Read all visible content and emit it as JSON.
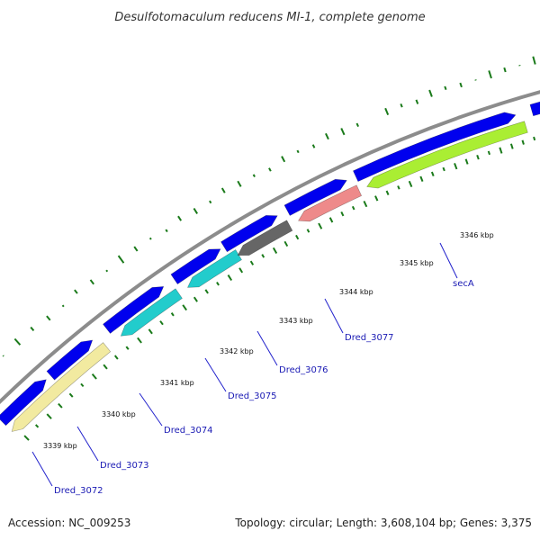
{
  "title": "Desulfotomaculum reducens MI-1, complete genome",
  "footer": {
    "accession": "Accession: NC_009253",
    "summary": "Topology: circular; Length: 3,608,104 bp; Genes: 3,375"
  },
  "colors": {
    "backbone": "#8c8c8c",
    "cds_forward": "#0000ee",
    "cds_reverse_khaki": "#f2eaa0",
    "cds_reverse_cyan": "#22cccc",
    "cds_reverse_gray": "#666666",
    "cds_reverse_salmon": "#ee8a8a",
    "cds_reverse_lime": "#aaee33",
    "gc_ticks": "#1a7a1a"
  },
  "ticks": [
    {
      "kbp": 3339,
      "label": "3339 kbp"
    },
    {
      "kbp": 3340,
      "label": "3340 kbp"
    },
    {
      "kbp": 3341,
      "label": "3341 kbp"
    },
    {
      "kbp": 3342,
      "label": "3342 kbp"
    },
    {
      "kbp": 3343,
      "label": "3343 kbp"
    },
    {
      "kbp": 3344,
      "label": "3344 kbp"
    },
    {
      "kbp": 3345,
      "label": "3345 kbp"
    },
    {
      "kbp": 3346,
      "label": "3346 kbp"
    }
  ],
  "genes": [
    {
      "name": "Dred_3072",
      "label": "Dred_3072"
    },
    {
      "name": "Dred_3073",
      "label": "Dred_3073"
    },
    {
      "name": "Dred_3074",
      "label": "Dred_3074"
    },
    {
      "name": "Dred_3075",
      "label": "Dred_3075"
    },
    {
      "name": "Dred_3076",
      "label": "Dred_3076"
    },
    {
      "name": "Dred_3077",
      "label": "Dred_3077"
    },
    {
      "name": "secA",
      "label": "secA"
    }
  ]
}
